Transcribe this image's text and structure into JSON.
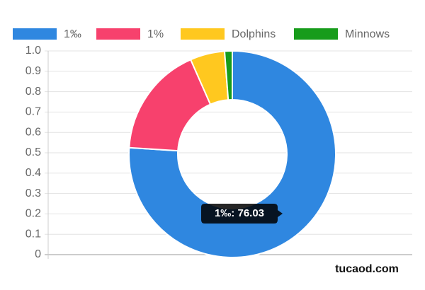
{
  "chart_data": {
    "type": "doughnut",
    "categories": [
      "1‰",
      "1%",
      "Dolphins",
      "Minnows"
    ],
    "values": [
      76.03,
      17.4,
      5.4,
      1.2
    ],
    "colors": [
      "#2f87e0",
      "#f7416d",
      "#ffc81f",
      "#179c1b"
    ],
    "ylim": [
      0,
      1
    ],
    "yticks": [
      0,
      0.1,
      0.2,
      0.3,
      0.4,
      0.5,
      0.6,
      0.7,
      0.8,
      0.9,
      {
        "value": 1,
        "label": "1.0"
      }
    ],
    "grid": true,
    "tooltip": "1‰: 76.03",
    "watermark": "tucaod.com"
  }
}
